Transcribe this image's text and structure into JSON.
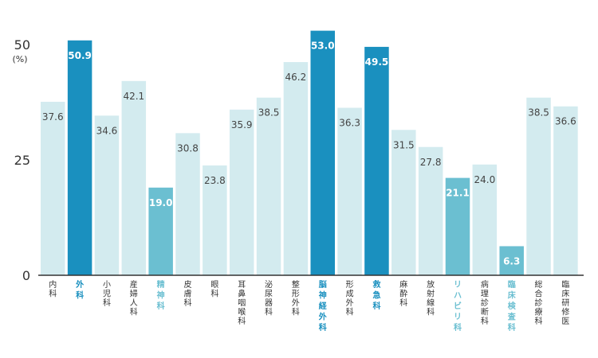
{
  "chart_data": {
    "type": "bar",
    "title": "",
    "xlabel": "",
    "ylabel": "",
    "y_unit": "(%)",
    "ylim": [
      0,
      50
    ],
    "yticks": [
      "0",
      "25",
      "50"
    ],
    "grid": false,
    "categories": [
      "内科",
      "外科",
      "小児科",
      "産婦人科",
      "精神科",
      "皮膚科",
      "眼科",
      "耳鼻咽喉科",
      "泌尿器科",
      "整形外科",
      "脳神経外科",
      "形成外科",
      "救急科",
      "麻酔科",
      "放射線科",
      "リハビリ科",
      "病理診断科",
      "臨床検査科",
      "総合診療科",
      "臨床研修医"
    ],
    "values": [
      37.6,
      50.9,
      34.6,
      42.1,
      19.0,
      30.8,
      23.8,
      35.9,
      38.5,
      46.2,
      53.0,
      36.3,
      49.5,
      31.5,
      27.8,
      21.1,
      24.0,
      6.3,
      38.5,
      36.6
    ],
    "value_labels": [
      "37.6",
      "50.9",
      "34.6",
      "42.1",
      "19.0",
      "30.8",
      "23.8",
      "35.9",
      "38.5",
      "46.2",
      "53.0",
      "36.3",
      "49.5",
      "31.5",
      "27.8",
      "21.1",
      "24.0",
      "6.3",
      "38.5",
      "36.6"
    ],
    "highlight": [
      "normal",
      "dark",
      "normal",
      "normal",
      "medium",
      "normal",
      "normal",
      "normal",
      "normal",
      "normal",
      "dark",
      "normal",
      "dark",
      "normal",
      "normal",
      "medium",
      "normal",
      "medium",
      "normal",
      "normal"
    ],
    "colors": {
      "normal": "#d3ebef",
      "dark": "#1a90bf",
      "medium": "#6bbfd1",
      "label_normal": "#444444",
      "label_highlight": "#ffffff",
      "category_normal": "#333333",
      "category_dark": "#1a90bf",
      "category_medium": "#6bbfd1",
      "axis": "#333333"
    }
  }
}
